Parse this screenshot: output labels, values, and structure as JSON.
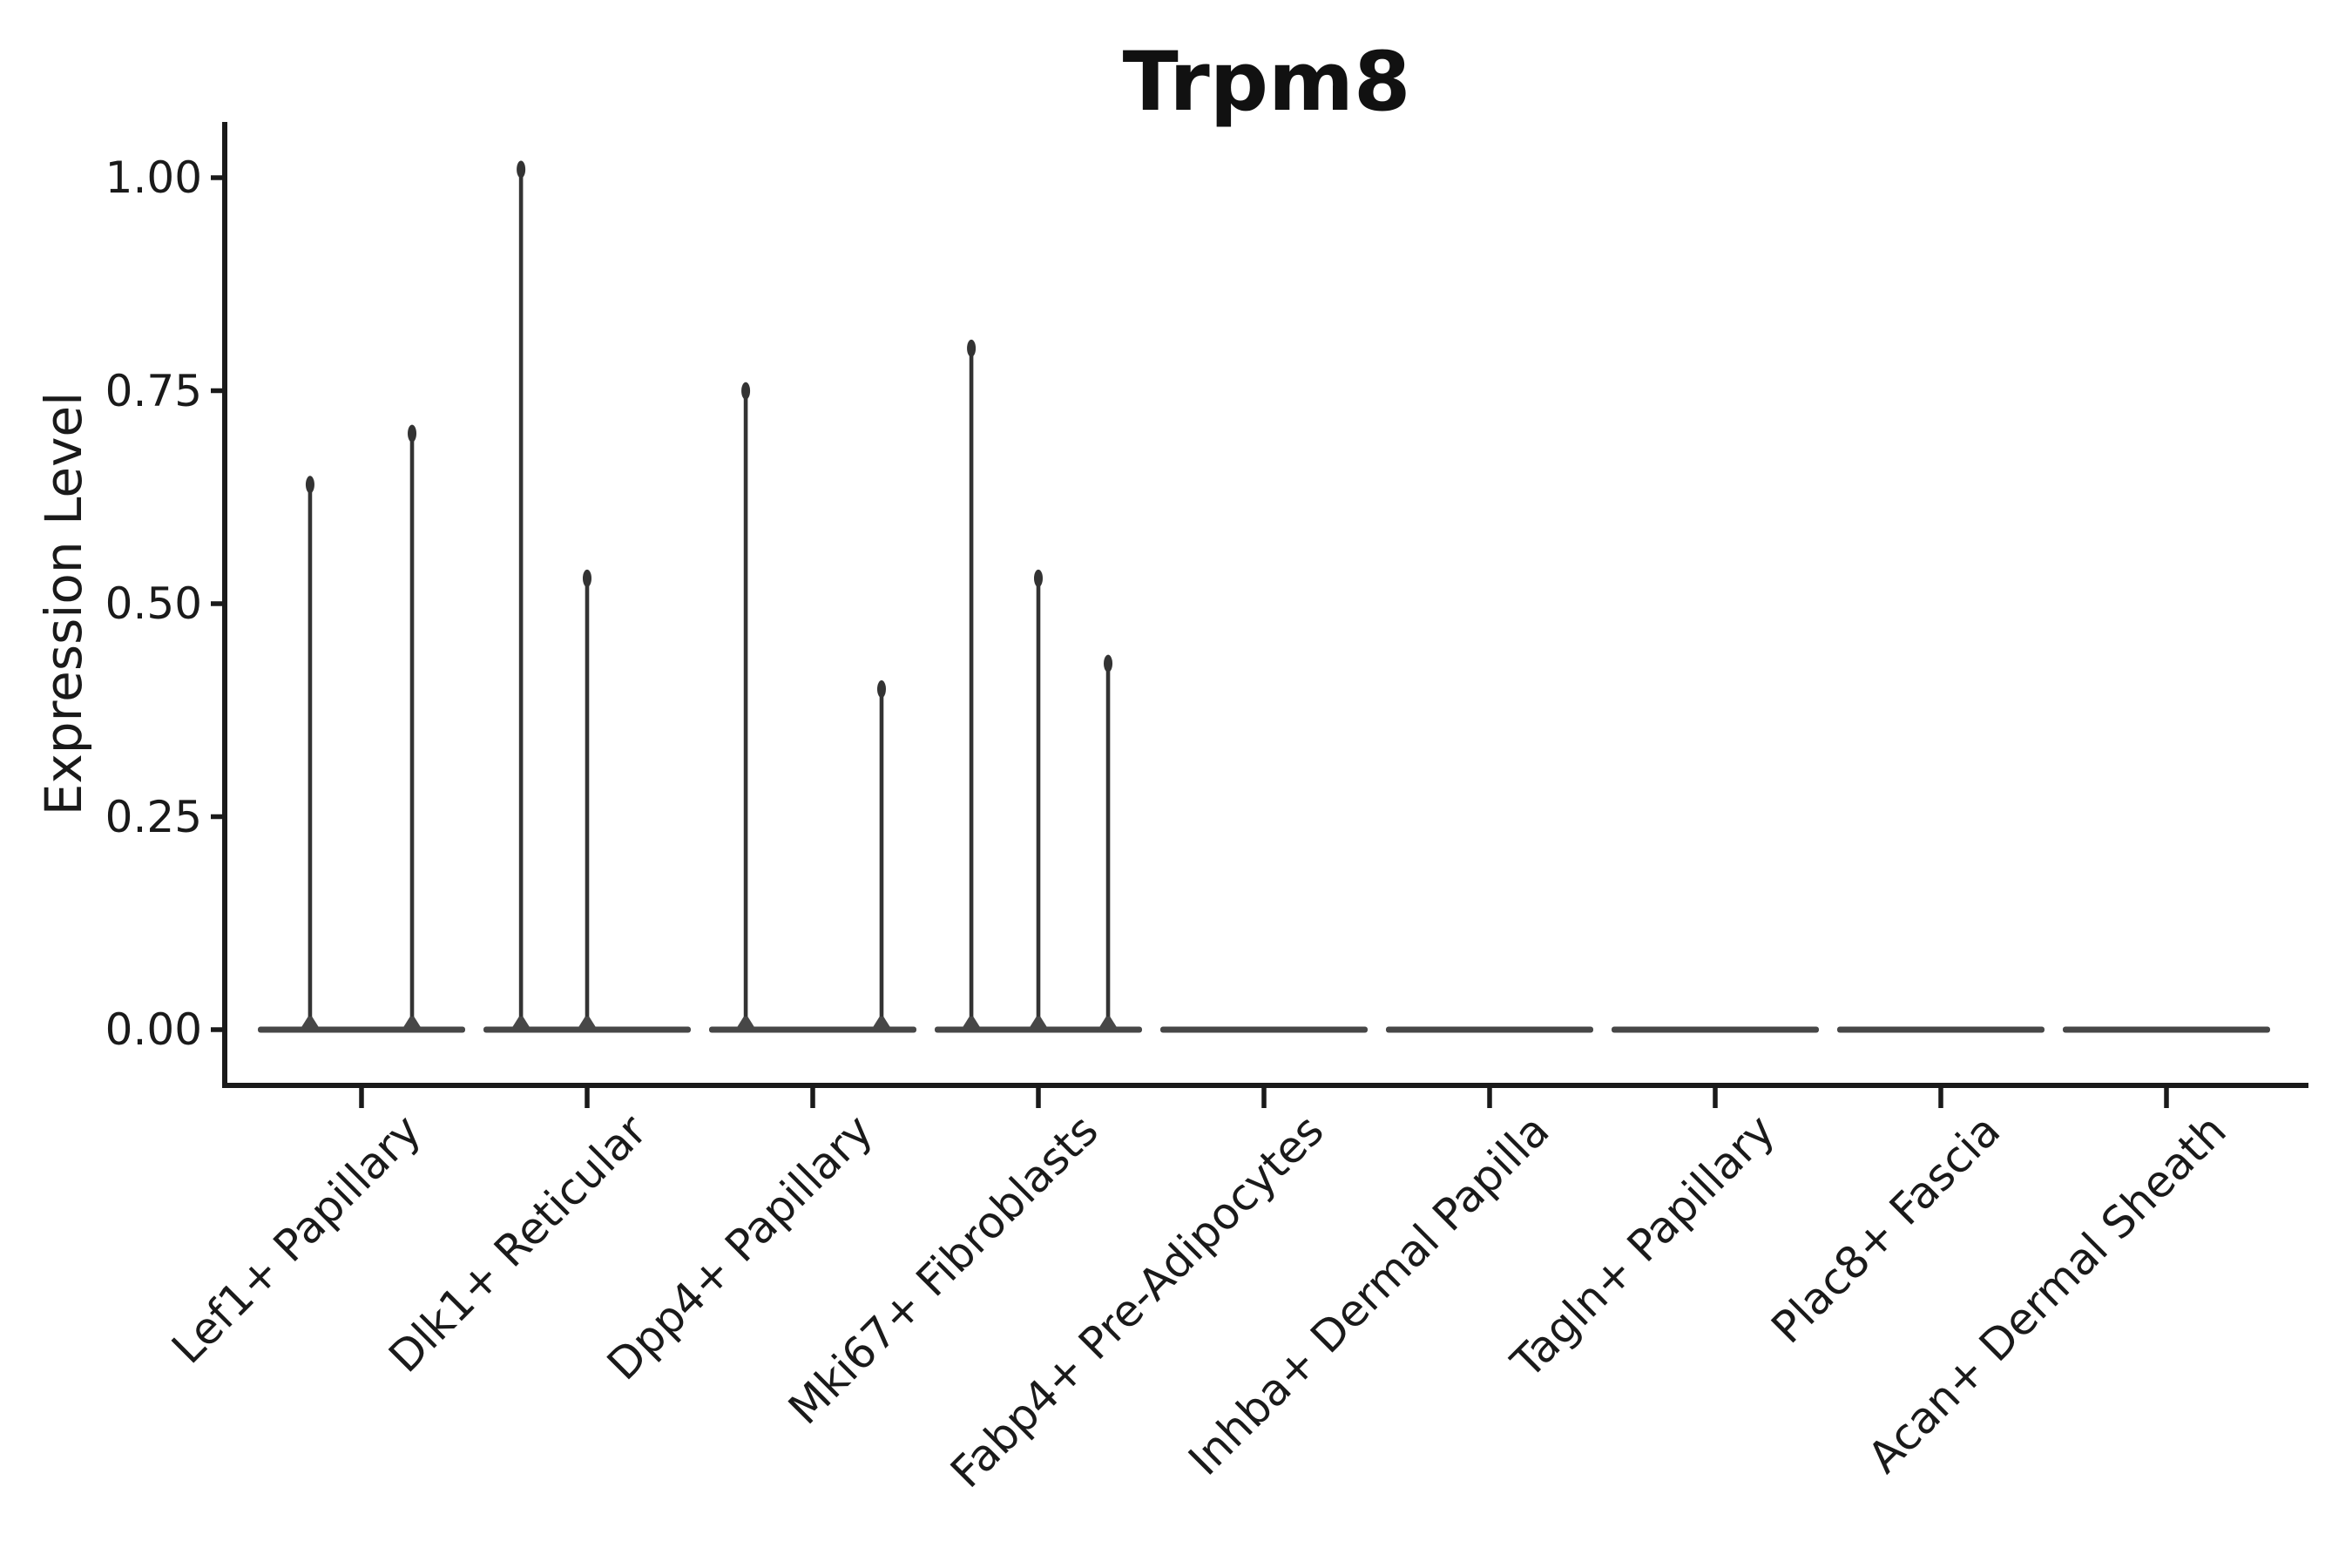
{
  "title": "Trpm8",
  "axes": {
    "ylabel": "Expression Level",
    "ytick_labels": [
      "0.00",
      "0.25",
      "0.50",
      "0.75",
      "1.00"
    ]
  },
  "chart_data": {
    "type": "violin",
    "title": "Trpm8",
    "xlabel": "",
    "ylabel": "Expression Level",
    "categories": [
      "Lef1+ Papillary",
      "Dlk1+ Reticular",
      "Dpp4+ Papillary",
      "Mki67+ Fibroblasts",
      "Fabp4+ Pre-Adipocytes",
      "Inhba+ Dermal Papilla",
      "Tagln+ Papillary",
      "Plac8+ Fascia",
      "Acan+ Dermal Sheath"
    ],
    "yticks": [
      0.0,
      0.25,
      0.5,
      0.75,
      1.0
    ],
    "ytick_labels": [
      "0.00",
      "0.25",
      "0.50",
      "0.75",
      "1.00"
    ],
    "ylim": [
      -0.065,
      1.07
    ],
    "grid": false,
    "legend": null,
    "spike_color": "#333333",
    "baseline_bar_color": "#474747",
    "axis_color": "#1a1a1a",
    "violins": [
      {
        "category": "Lef1+ Papillary",
        "baseline_value": 0.0,
        "peaks": [
          {
            "value": 0.65,
            "offset_frac": -0.228
          },
          {
            "value": 0.71,
            "offset_frac": 0.224
          }
        ]
      },
      {
        "category": "Dlk1+ Reticular",
        "baseline_value": 0.0,
        "peaks": [
          {
            "value": 1.02,
            "offset_frac": -0.293
          },
          {
            "value": 0.54,
            "offset_frac": 0.0
          }
        ]
      },
      {
        "category": "Dpp4+ Papillary",
        "baseline_value": 0.0,
        "peaks": [
          {
            "value": 0.76,
            "offset_frac": -0.297
          },
          {
            "value": 0.41,
            "offset_frac": 0.305
          }
        ]
      },
      {
        "category": "Mki67+ Fibroblasts",
        "baseline_value": 0.0,
        "peaks": [
          {
            "value": 0.81,
            "offset_frac": -0.297
          },
          {
            "value": 0.54,
            "offset_frac": 0.0
          },
          {
            "value": 0.44,
            "offset_frac": 0.309
          }
        ]
      },
      {
        "category": "Fabp4+ Pre-Adipocytes",
        "baseline_value": 0.0,
        "peaks": []
      },
      {
        "category": "Inhba+ Dermal Papilla",
        "baseline_value": 0.0,
        "peaks": []
      },
      {
        "category": "Tagln+ Papillary",
        "baseline_value": 0.0,
        "peaks": []
      },
      {
        "category": "Plac8+ Fascia",
        "baseline_value": 0.0,
        "peaks": []
      },
      {
        "category": "Acan+ Dermal Sheath",
        "baseline_value": 0.0,
        "peaks": []
      }
    ]
  }
}
